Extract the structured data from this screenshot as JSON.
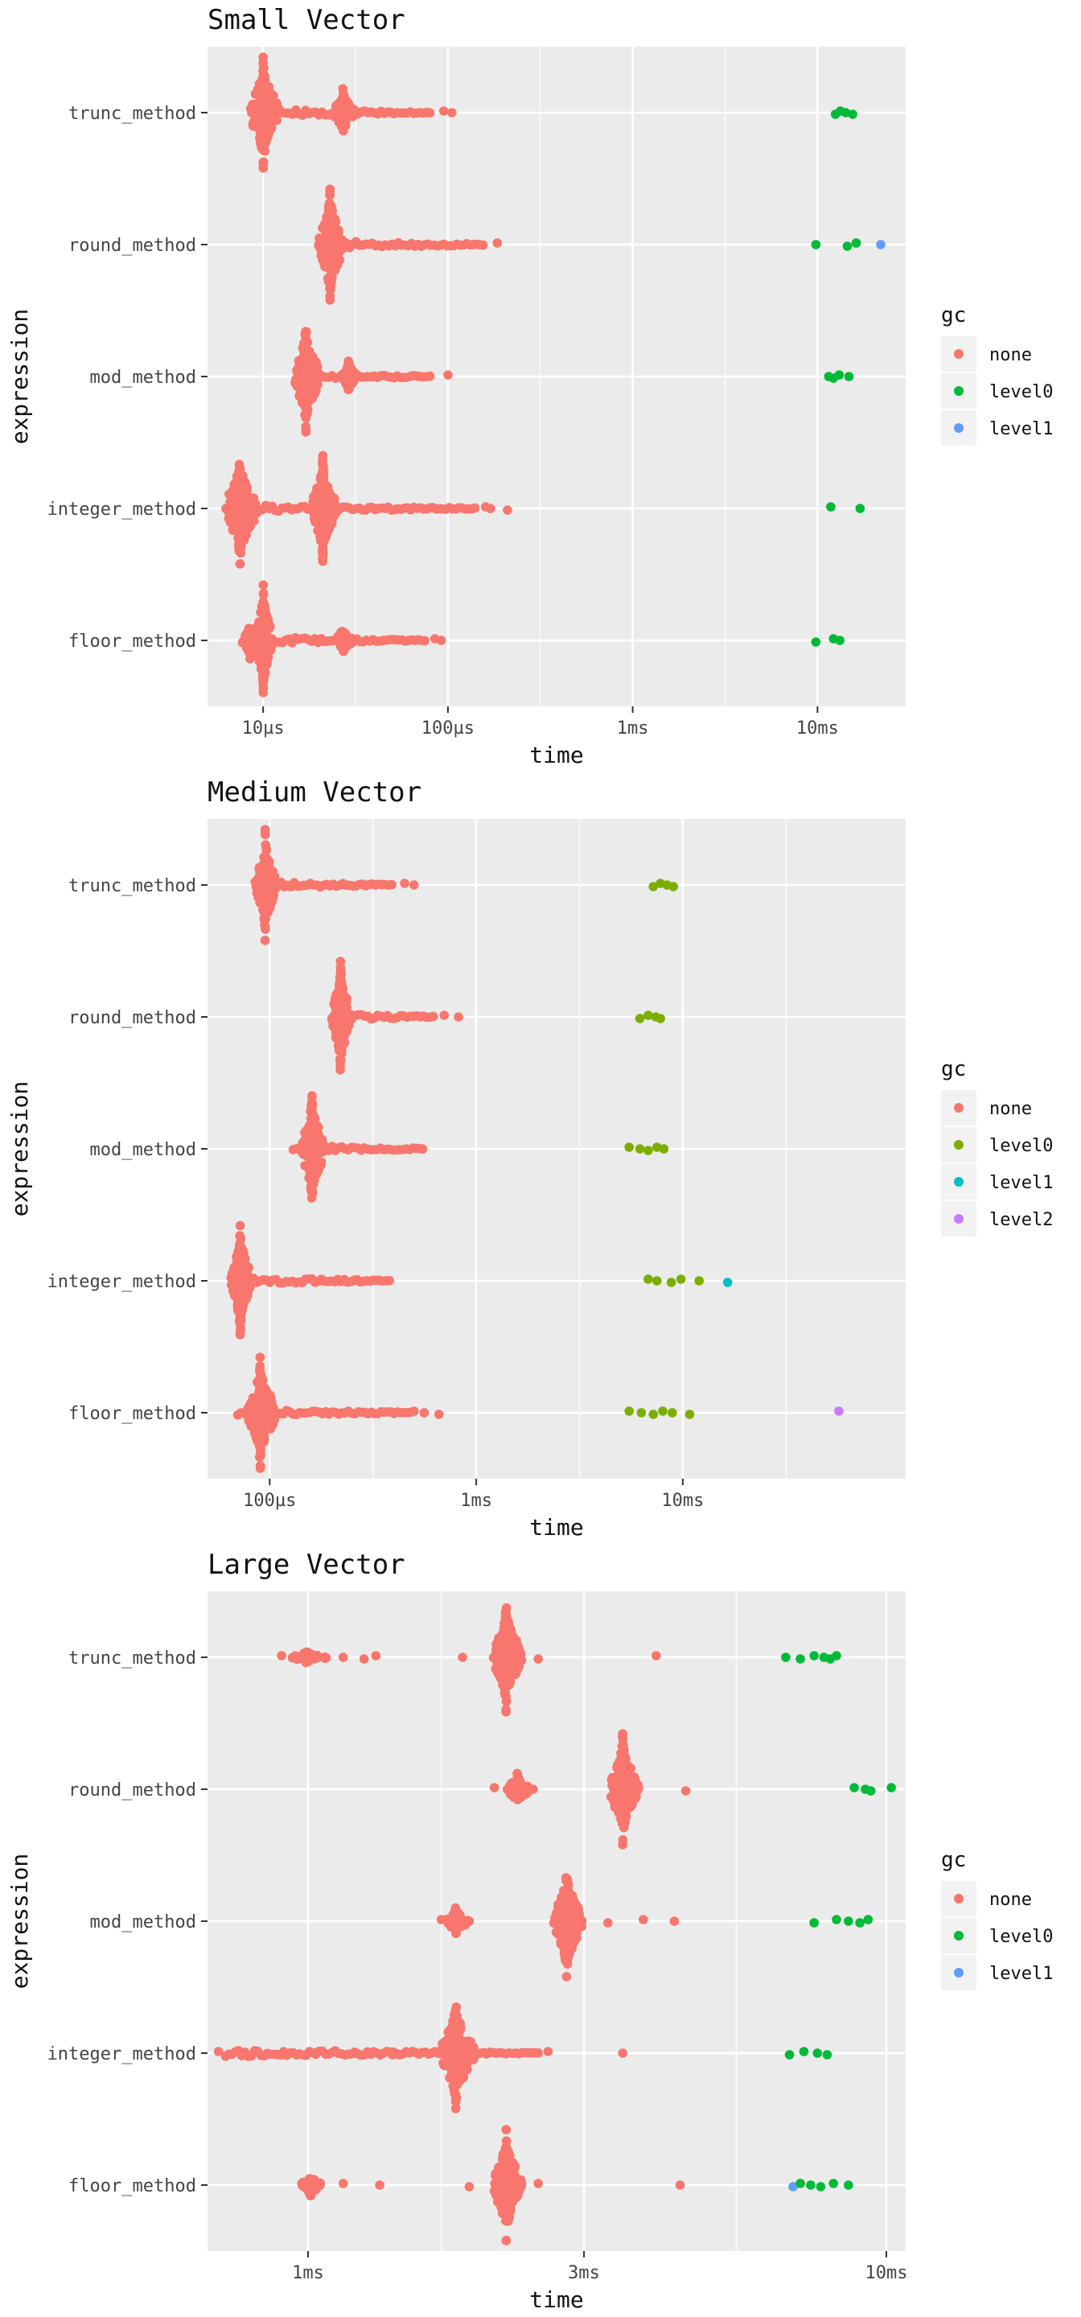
{
  "chart_data": [
    {
      "type": "scatter",
      "subtype": "beeswarm",
      "title": "Small Vector",
      "xlabel": "time",
      "ylabel": "expression",
      "x_scale": "log10",
      "x_unit": "seconds",
      "xlim": [
        5e-06,
        0.03
      ],
      "x_ticks": [
        1e-05,
        0.0001,
        0.001,
        0.01
      ],
      "x_tick_labels": [
        "10µs",
        "100µs",
        "1ms",
        "10ms"
      ],
      "categories": [
        "trunc_method",
        "round_method",
        "mod_method",
        "integer_method",
        "floor_method"
      ],
      "legend": {
        "title": "gc",
        "position": "right",
        "items": [
          {
            "label": "none",
            "color": "#F8766D"
          },
          {
            "label": "level0",
            "color": "#00BA38"
          },
          {
            "label": "level1",
            "color": "#619CFF"
          }
        ]
      },
      "series": [
        {
          "name": "trunc_method",
          "clusters": [
            {
              "center": 1e-05,
              "spread": 0.08,
              "height": 0.42,
              "gc": "none"
            },
            {
              "center": 2.7e-05,
              "spread": 0.06,
              "height": 0.18,
              "gc": "none"
            }
          ],
          "trail": {
            "from": 1e-05,
            "to": 8e-05,
            "gc": "none"
          },
          "points": [
            {
              "x": 9.5e-05,
              "gc": "none"
            },
            {
              "x": 0.000105,
              "gc": "none"
            },
            {
              "x": 0.0125,
              "gc": "level0"
            },
            {
              "x": 0.0133,
              "gc": "level0"
            },
            {
              "x": 0.0142,
              "gc": "level0"
            },
            {
              "x": 0.0155,
              "gc": "level0"
            }
          ]
        },
        {
          "name": "round_method",
          "clusters": [
            {
              "center": 2.3e-05,
              "spread": 0.07,
              "height": 0.42,
              "gc": "none"
            }
          ],
          "trail": {
            "from": 2.3e-05,
            "to": 0.000155,
            "gc": "none"
          },
          "points": [
            {
              "x": 0.000185,
              "gc": "none"
            },
            {
              "x": 0.0098,
              "gc": "level0"
            },
            {
              "x": 0.0145,
              "gc": "level0"
            },
            {
              "x": 0.0162,
              "gc": "level0"
            },
            {
              "x": 0.022,
              "gc": "level1"
            }
          ]
        },
        {
          "name": "mod_method",
          "clusters": [
            {
              "center": 1.7e-05,
              "spread": 0.07,
              "height": 0.42,
              "gc": "none"
            },
            {
              "center": 2.9e-05,
              "spread": 0.04,
              "height": 0.12,
              "gc": "none"
            }
          ],
          "trail": {
            "from": 1.7e-05,
            "to": 8e-05,
            "gc": "none"
          },
          "points": [
            {
              "x": 0.0001,
              "gc": "none"
            },
            {
              "x": 0.0115,
              "gc": "level0"
            },
            {
              "x": 0.0122,
              "gc": "level0"
            },
            {
              "x": 0.0131,
              "gc": "level0"
            },
            {
              "x": 0.0148,
              "gc": "level0"
            }
          ]
        },
        {
          "name": "integer_method",
          "clusters": [
            {
              "center": 7.5e-06,
              "spread": 0.09,
              "height": 0.42,
              "gc": "none"
            },
            {
              "center": 2.1e-05,
              "spread": 0.07,
              "height": 0.4,
              "gc": "none"
            }
          ],
          "trail": {
            "from": 7.5e-06,
            "to": 0.00014,
            "gc": "none"
          },
          "points": [
            {
              "x": 0.00016,
              "gc": "none"
            },
            {
              "x": 0.00017,
              "gc": "none"
            },
            {
              "x": 0.00021,
              "gc": "none"
            },
            {
              "x": 0.0118,
              "gc": "level0"
            },
            {
              "x": 0.017,
              "gc": "level0"
            }
          ]
        },
        {
          "name": "floor_method",
          "clusters": [
            {
              "center": 1e-05,
              "spread": 0.05,
              "height": 0.42,
              "gc": "none"
            },
            {
              "center": 8.5e-06,
              "spread": 0.05,
              "height": 0.14,
              "gc": "none"
            },
            {
              "center": 2.7e-05,
              "spread": 0.05,
              "height": 0.1,
              "gc": "none"
            }
          ],
          "trail": {
            "from": 8.5e-06,
            "to": 7.5e-05,
            "gc": "none"
          },
          "points": [
            {
              "x": 8.5e-05,
              "gc": "none"
            },
            {
              "x": 9.2e-05,
              "gc": "none"
            },
            {
              "x": 0.0098,
              "gc": "level0"
            },
            {
              "x": 0.0122,
              "gc": "level0"
            },
            {
              "x": 0.0132,
              "gc": "level0"
            }
          ]
        }
      ]
    },
    {
      "type": "scatter",
      "subtype": "beeswarm",
      "title": "Medium Vector",
      "xlabel": "time",
      "ylabel": "expression",
      "x_scale": "log10",
      "x_unit": "seconds",
      "xlim": [
        5e-05,
        0.12
      ],
      "x_ticks": [
        0.0001,
        0.001,
        0.01
      ],
      "x_tick_labels": [
        "100µs",
        "1ms",
        "10ms"
      ],
      "categories": [
        "trunc_method",
        "round_method",
        "mod_method",
        "integer_method",
        "floor_method"
      ],
      "legend": {
        "title": "gc",
        "position": "right",
        "items": [
          {
            "label": "none",
            "color": "#F8766D"
          },
          {
            "label": "level0",
            "color": "#7CAE00"
          },
          {
            "label": "level1",
            "color": "#00BFC4"
          },
          {
            "label": "level2",
            "color": "#C77CFF"
          }
        ]
      },
      "series": [
        {
          "name": "trunc_method",
          "clusters": [
            {
              "center": 9.5e-05,
              "spread": 0.05,
              "height": 0.42,
              "gc": "none"
            }
          ],
          "trail": {
            "from": 8.5e-05,
            "to": 0.00039,
            "gc": "none"
          },
          "points": [
            {
              "x": 0.00045,
              "gc": "none"
            },
            {
              "x": 0.0005,
              "gc": "none"
            },
            {
              "x": 0.0072,
              "gc": "level0"
            },
            {
              "x": 0.0078,
              "gc": "level0"
            },
            {
              "x": 0.0084,
              "gc": "level0"
            },
            {
              "x": 0.009,
              "gc": "level0"
            }
          ]
        },
        {
          "name": "round_method",
          "clusters": [
            {
              "center": 0.00022,
              "spread": 0.05,
              "height": 0.42,
              "gc": "none"
            }
          ],
          "trail": {
            "from": 0.0002,
            "to": 0.00062,
            "gc": "none"
          },
          "points": [
            {
              "x": 0.0007,
              "gc": "none"
            },
            {
              "x": 0.00082,
              "gc": "none"
            },
            {
              "x": 0.0062,
              "gc": "level0"
            },
            {
              "x": 0.0068,
              "gc": "level0"
            },
            {
              "x": 0.0074,
              "gc": "level0"
            },
            {
              "x": 0.0078,
              "gc": "level0"
            }
          ]
        },
        {
          "name": "mod_method",
          "clusters": [
            {
              "center": 0.00016,
              "spread": 0.06,
              "height": 0.42,
              "gc": "none"
            }
          ],
          "trail": {
            "from": 0.00013,
            "to": 0.00055,
            "gc": "none"
          },
          "points": [
            {
              "x": 0.0055,
              "gc": "level0"
            },
            {
              "x": 0.0062,
              "gc": "level0"
            },
            {
              "x": 0.0068,
              "gc": "level0"
            },
            {
              "x": 0.0075,
              "gc": "level0"
            },
            {
              "x": 0.0081,
              "gc": "level0"
            }
          ]
        },
        {
          "name": "integer_method",
          "clusters": [
            {
              "center": 7.2e-05,
              "spread": 0.05,
              "height": 0.42,
              "gc": "none"
            }
          ],
          "trail": {
            "from": 6.5e-05,
            "to": 0.00038,
            "gc": "none"
          },
          "points": [
            {
              "x": 0.0068,
              "gc": "level0"
            },
            {
              "x": 0.0075,
              "gc": "level0"
            },
            {
              "x": 0.0088,
              "gc": "level0"
            },
            {
              "x": 0.0098,
              "gc": "level0"
            },
            {
              "x": 0.012,
              "gc": "level0"
            },
            {
              "x": 0.0165,
              "gc": "level1"
            }
          ]
        },
        {
          "name": "floor_method",
          "clusters": [
            {
              "center": 9e-05,
              "spread": 0.07,
              "height": 0.42,
              "gc": "none"
            }
          ],
          "trail": {
            "from": 7e-05,
            "to": 0.00048,
            "gc": "none"
          },
          "points": [
            {
              "x": 0.0005,
              "gc": "none"
            },
            {
              "x": 0.00056,
              "gc": "none"
            },
            {
              "x": 0.00066,
              "gc": "none"
            },
            {
              "x": 0.0055,
              "gc": "level0"
            },
            {
              "x": 0.0063,
              "gc": "level0"
            },
            {
              "x": 0.0072,
              "gc": "level0"
            },
            {
              "x": 0.008,
              "gc": "level0"
            },
            {
              "x": 0.0089,
              "gc": "level0"
            },
            {
              "x": 0.0108,
              "gc": "level0"
            },
            {
              "x": 0.057,
              "gc": "level2"
            }
          ]
        }
      ]
    },
    {
      "type": "scatter",
      "subtype": "beeswarm",
      "title": "Large Vector",
      "xlabel": "time",
      "ylabel": "expression",
      "x_scale": "log10",
      "x_unit": "seconds",
      "xlim": [
        0.00067,
        0.0108
      ],
      "x_ticks": [
        0.001,
        0.003,
        0.01
      ],
      "x_tick_labels": [
        "1ms",
        "3ms",
        "10ms"
      ],
      "x_minor_gridlines": [
        0.0017,
        0.0055
      ],
      "categories": [
        "trunc_method",
        "round_method",
        "mod_method",
        "integer_method",
        "floor_method"
      ],
      "legend": {
        "title": "gc",
        "position": "right",
        "items": [
          {
            "label": "none",
            "color": "#F8766D"
          },
          {
            "label": "level0",
            "color": "#00BA38"
          },
          {
            "label": "level1",
            "color": "#619CFF"
          }
        ]
      },
      "series": [
        {
          "name": "trunc_method",
          "clusters": [
            {
              "center": 0.0022,
              "spread": 0.025,
              "height": 0.42,
              "gc": "none"
            },
            {
              "center": 0.00099,
              "spread": 0.035,
              "height": 0.04,
              "gc": "none"
            }
          ],
          "points": [
            {
              "x": 0.0009,
              "gc": "none"
            },
            {
              "x": 0.00115,
              "gc": "none"
            },
            {
              "x": 0.00125,
              "gc": "none"
            },
            {
              "x": 0.00131,
              "gc": "none"
            },
            {
              "x": 0.00185,
              "gc": "none"
            },
            {
              "x": 0.0025,
              "gc": "none"
            },
            {
              "x": 0.004,
              "gc": "none"
            },
            {
              "x": 0.0067,
              "gc": "level0"
            },
            {
              "x": 0.0071,
              "gc": "level0"
            },
            {
              "x": 0.0075,
              "gc": "level0"
            },
            {
              "x": 0.0078,
              "gc": "level0"
            },
            {
              "x": 0.008,
              "gc": "level0"
            },
            {
              "x": 0.0082,
              "gc": "level0"
            }
          ]
        },
        {
          "name": "round_method",
          "clusters": [
            {
              "center": 0.0035,
              "spread": 0.025,
              "height": 0.42,
              "gc": "none"
            },
            {
              "center": 0.0023,
              "spread": 0.02,
              "height": 0.12,
              "gc": "none"
            }
          ],
          "points": [
            {
              "x": 0.0021,
              "gc": "none"
            },
            {
              "x": 0.00245,
              "gc": "none"
            },
            {
              "x": 0.0045,
              "gc": "none"
            },
            {
              "x": 0.0088,
              "gc": "level0"
            },
            {
              "x": 0.0092,
              "gc": "level0"
            },
            {
              "x": 0.0094,
              "gc": "level0"
            },
            {
              "x": 0.0102,
              "gc": "level0"
            }
          ]
        },
        {
          "name": "mod_method",
          "clusters": [
            {
              "center": 0.0028,
              "spread": 0.025,
              "height": 0.42,
              "gc": "none"
            },
            {
              "center": 0.0018,
              "spread": 0.02,
              "height": 0.1,
              "gc": "none"
            }
          ],
          "points": [
            {
              "x": 0.0017,
              "gc": "none"
            },
            {
              "x": 0.0019,
              "gc": "none"
            },
            {
              "x": 0.0033,
              "gc": "none"
            },
            {
              "x": 0.0038,
              "gc": "none"
            },
            {
              "x": 0.0043,
              "gc": "none"
            },
            {
              "x": 0.0075,
              "gc": "level0"
            },
            {
              "x": 0.0082,
              "gc": "level0"
            },
            {
              "x": 0.0086,
              "gc": "level0"
            },
            {
              "x": 0.009,
              "gc": "level0"
            },
            {
              "x": 0.0093,
              "gc": "level0"
            }
          ]
        },
        {
          "name": "integer_method",
          "clusters": [
            {
              "center": 0.0018,
              "spread": 0.03,
              "height": 0.42,
              "gc": "none"
            }
          ],
          "trail": {
            "from": 0.00072,
            "to": 0.0025,
            "gc": "none"
          },
          "points": [
            {
              "x": 0.0007,
              "gc": "none"
            },
            {
              "x": 0.0012,
              "gc": "none"
            },
            {
              "x": 0.0014,
              "gc": "none"
            },
            {
              "x": 0.0026,
              "gc": "none"
            },
            {
              "x": 0.0035,
              "gc": "none"
            },
            {
              "x": 0.0068,
              "gc": "level0"
            },
            {
              "x": 0.0072,
              "gc": "level0"
            },
            {
              "x": 0.0076,
              "gc": "level0"
            },
            {
              "x": 0.0079,
              "gc": "level0"
            }
          ]
        },
        {
          "name": "floor_method",
          "clusters": [
            {
              "center": 0.0022,
              "spread": 0.025,
              "height": 0.42,
              "gc": "none"
            },
            {
              "center": 0.00101,
              "spread": 0.02,
              "height": 0.08,
              "gc": "none"
            }
          ],
          "points": [
            {
              "x": 0.00115,
              "gc": "none"
            },
            {
              "x": 0.00133,
              "gc": "none"
            },
            {
              "x": 0.0019,
              "gc": "none"
            },
            {
              "x": 0.0025,
              "gc": "none"
            },
            {
              "x": 0.0044,
              "gc": "none"
            },
            {
              "x": 0.0069,
              "gc": "level1"
            },
            {
              "x": 0.0071,
              "gc": "level0"
            },
            {
              "x": 0.0074,
              "gc": "level0"
            },
            {
              "x": 0.0077,
              "gc": "level0"
            },
            {
              "x": 0.0081,
              "gc": "level0"
            },
            {
              "x": 0.0086,
              "gc": "level0"
            }
          ]
        }
      ]
    }
  ]
}
